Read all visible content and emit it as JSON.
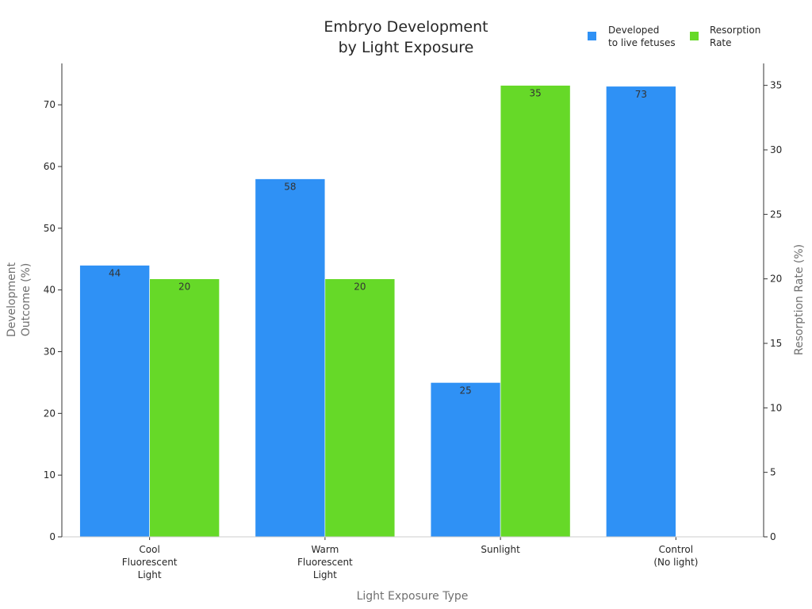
{
  "chart_data": {
    "type": "bar",
    "title_lines": [
      "Embryo Development",
      "by Light Exposure"
    ],
    "xlabel": "Light Exposure Type",
    "ylabel_lines": [
      "Development",
      "Outcome (%)"
    ],
    "y2label": "Resorption Rate (%)",
    "categories": [
      [
        "Cool",
        "Fluorescent",
        "Light"
      ],
      [
        "Warm",
        "Fluorescent",
        "Light"
      ],
      [
        "Sunlight"
      ],
      [
        "Control",
        "(No light)"
      ]
    ],
    "series": [
      {
        "name_lines": [
          "Developed",
          "to live fetuses"
        ],
        "axis": "left",
        "color": "#2f91f5",
        "values": [
          44,
          58,
          25,
          73
        ],
        "labels": [
          "44",
          "58",
          "25",
          "73"
        ]
      },
      {
        "name_lines": [
          "Resorption",
          "Rate"
        ],
        "axis": "right",
        "color": "#66d928",
        "values": [
          20,
          20,
          35,
          null
        ],
        "labels": [
          "20",
          "20",
          "35",
          ""
        ]
      }
    ],
    "ylim": [
      0,
      76.7
    ],
    "y2lim": [
      0,
      36.7
    ],
    "yticks": [
      0,
      10,
      20,
      30,
      40,
      50,
      60,
      70
    ],
    "y2ticks": [
      0,
      5,
      10,
      15,
      20,
      25,
      30,
      35
    ],
    "legend_position": "top-right",
    "grid": false
  }
}
